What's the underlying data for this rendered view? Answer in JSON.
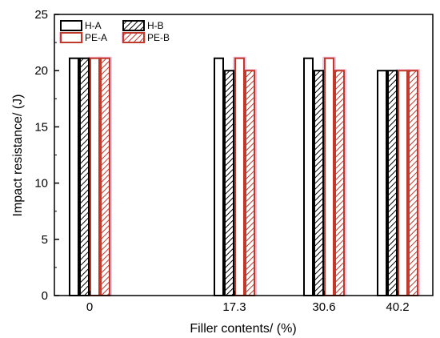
{
  "chart_data": {
    "type": "bar",
    "categories": [
      "0",
      "17.3",
      "30.6",
      "40.2"
    ],
    "series": [
      {
        "name": "H-A",
        "values": [
          21.1,
          21.1,
          21.1,
          20.0
        ],
        "edge": "#000000",
        "fill": "#ffffff",
        "pattern": "none",
        "shadow": false
      },
      {
        "name": "H-B",
        "values": [
          21.1,
          20.0,
          20.0,
          20.0
        ],
        "edge": "#000000",
        "fill": "#ffffff",
        "pattern": "hatch",
        "shadow": false
      },
      {
        "name": "PE-A",
        "values": [
          21.1,
          21.1,
          21.1,
          20.0
        ],
        "edge": "#c0392b",
        "fill": "#ffffff",
        "pattern": "none",
        "shadow": true
      },
      {
        "name": "PE-B",
        "values": [
          21.1,
          20.0,
          20.0,
          20.0
        ],
        "edge": "#c0392b",
        "fill": "#ffffff",
        "pattern": "hatch",
        "shadow": true
      }
    ],
    "xlabel": "Filler contents/ (%)",
    "ylabel": "Impact resistance/ (J)",
    "ylim": [
      0,
      25
    ],
    "yticks": [
      0,
      5,
      10,
      15,
      20,
      25
    ],
    "legend_position": "top-left",
    "grid": false,
    "colors": {
      "shadow": "#f4b6d2",
      "axis": "#000000"
    }
  }
}
